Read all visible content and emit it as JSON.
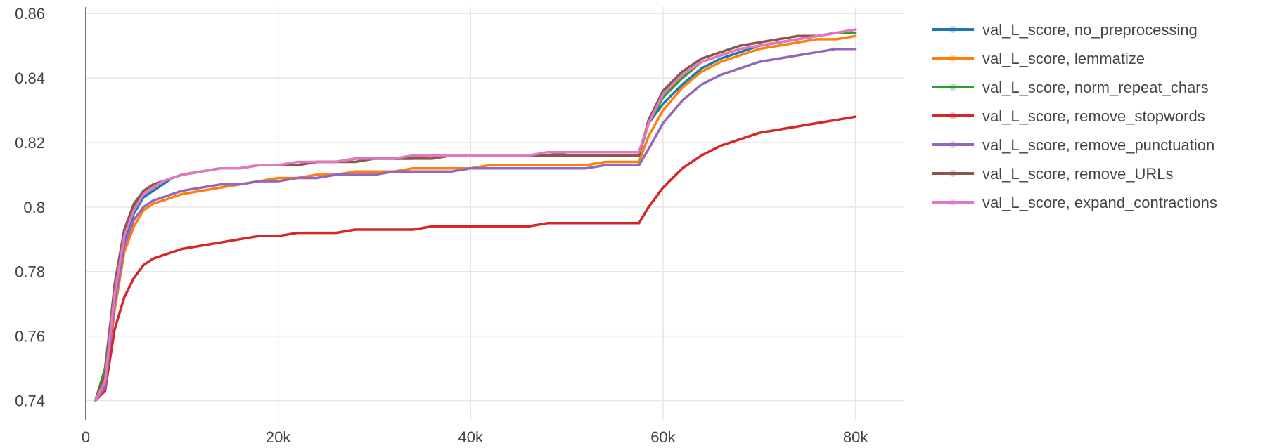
{
  "chart_data": {
    "type": "line",
    "title": "",
    "xlabel": "",
    "ylabel": "",
    "xlim": [
      0,
      85000
    ],
    "ylim": [
      0.734,
      0.862
    ],
    "x_ticks": [
      0,
      20000,
      40000,
      60000,
      80000
    ],
    "x_tick_labels": [
      "0",
      "20k",
      "40k",
      "60k",
      "80k"
    ],
    "y_ticks": [
      0.74,
      0.76,
      0.78,
      0.8,
      0.82,
      0.84,
      0.86
    ],
    "y_tick_labels": [
      "0.74",
      "0.76",
      "0.78",
      "0.8",
      "0.82",
      "0.84",
      "0.86"
    ],
    "grid": true,
    "legend_position": "right",
    "x": [
      1000,
      2000,
      3000,
      4000,
      5000,
      6000,
      7000,
      8000,
      9000,
      10000,
      12000,
      14000,
      16000,
      18000,
      20000,
      22000,
      24000,
      26000,
      28000,
      30000,
      32000,
      34000,
      36000,
      38000,
      40000,
      42000,
      44000,
      46000,
      48000,
      50000,
      52000,
      54000,
      56000,
      57500,
      58500,
      60000,
      62000,
      64000,
      66000,
      68000,
      70000,
      72000,
      74000,
      76000,
      78000,
      80000
    ],
    "series": [
      {
        "name": "val_L_score, no_preprocessing",
        "color": "#1f77b4",
        "values": [
          0.74,
          0.745,
          0.772,
          0.79,
          0.798,
          0.803,
          0.805,
          0.807,
          0.809,
          0.81,
          0.811,
          0.812,
          0.812,
          0.813,
          0.813,
          0.813,
          0.814,
          0.814,
          0.815,
          0.815,
          0.815,
          0.815,
          0.816,
          0.816,
          0.816,
          0.816,
          0.816,
          0.816,
          0.816,
          0.816,
          0.816,
          0.816,
          0.816,
          0.816,
          0.826,
          0.832,
          0.838,
          0.843,
          0.846,
          0.848,
          0.85,
          0.851,
          0.852,
          0.853,
          0.854,
          0.855
        ]
      },
      {
        "name": "val_L_score, lemmatize",
        "color": "#ff7f0e",
        "values": [
          0.74,
          0.743,
          0.768,
          0.786,
          0.794,
          0.799,
          0.801,
          0.802,
          0.803,
          0.804,
          0.805,
          0.806,
          0.807,
          0.808,
          0.809,
          0.809,
          0.81,
          0.81,
          0.811,
          0.811,
          0.811,
          0.812,
          0.812,
          0.812,
          0.812,
          0.813,
          0.813,
          0.813,
          0.813,
          0.813,
          0.813,
          0.814,
          0.814,
          0.814,
          0.822,
          0.83,
          0.837,
          0.842,
          0.845,
          0.847,
          0.849,
          0.85,
          0.851,
          0.852,
          0.852,
          0.853
        ]
      },
      {
        "name": "val_L_score, norm_repeat_chars",
        "color": "#2ca02c",
        "values": [
          0.74,
          0.75,
          0.775,
          0.792,
          0.8,
          0.804,
          0.806,
          0.808,
          0.809,
          0.81,
          0.811,
          0.812,
          0.812,
          0.813,
          0.813,
          0.813,
          0.814,
          0.814,
          0.815,
          0.815,
          0.815,
          0.815,
          0.816,
          0.816,
          0.816,
          0.816,
          0.816,
          0.816,
          0.816,
          0.817,
          0.817,
          0.817,
          0.817,
          0.817,
          0.826,
          0.834,
          0.84,
          0.845,
          0.847,
          0.849,
          0.85,
          0.851,
          0.852,
          0.853,
          0.854,
          0.854
        ]
      },
      {
        "name": "val_L_score, remove_stopwords",
        "color": "#d62728",
        "values": [
          0.74,
          0.743,
          0.762,
          0.772,
          0.778,
          0.782,
          0.784,
          0.785,
          0.786,
          0.787,
          0.788,
          0.789,
          0.79,
          0.791,
          0.791,
          0.792,
          0.792,
          0.792,
          0.793,
          0.793,
          0.793,
          0.793,
          0.794,
          0.794,
          0.794,
          0.794,
          0.794,
          0.794,
          0.795,
          0.795,
          0.795,
          0.795,
          0.795,
          0.795,
          0.8,
          0.806,
          0.812,
          0.816,
          0.819,
          0.821,
          0.823,
          0.824,
          0.825,
          0.826,
          0.827,
          0.828
        ]
      },
      {
        "name": "val_L_score, remove_punctuation",
        "color": "#9467bd",
        "values": [
          0.74,
          0.744,
          0.77,
          0.788,
          0.796,
          0.8,
          0.802,
          0.803,
          0.804,
          0.805,
          0.806,
          0.807,
          0.807,
          0.808,
          0.808,
          0.809,
          0.809,
          0.81,
          0.81,
          0.81,
          0.811,
          0.811,
          0.811,
          0.811,
          0.812,
          0.812,
          0.812,
          0.812,
          0.812,
          0.812,
          0.812,
          0.813,
          0.813,
          0.813,
          0.818,
          0.826,
          0.833,
          0.838,
          0.841,
          0.843,
          0.845,
          0.846,
          0.847,
          0.848,
          0.849,
          0.849
        ]
      },
      {
        "name": "val_L_score, remove_URLs",
        "color": "#8c564b",
        "values": [
          0.74,
          0.748,
          0.776,
          0.793,
          0.801,
          0.805,
          0.807,
          0.808,
          0.809,
          0.81,
          0.811,
          0.812,
          0.812,
          0.813,
          0.813,
          0.813,
          0.814,
          0.814,
          0.814,
          0.815,
          0.815,
          0.815,
          0.815,
          0.816,
          0.816,
          0.816,
          0.816,
          0.816,
          0.816,
          0.816,
          0.816,
          0.816,
          0.816,
          0.816,
          0.827,
          0.836,
          0.842,
          0.846,
          0.848,
          0.85,
          0.851,
          0.852,
          0.853,
          0.853,
          0.854,
          0.855
        ]
      },
      {
        "name": "val_L_score, expand_contractions",
        "color": "#e377c2",
        "values": [
          0.74,
          0.746,
          0.773,
          0.791,
          0.799,
          0.804,
          0.806,
          0.808,
          0.809,
          0.81,
          0.811,
          0.812,
          0.812,
          0.813,
          0.813,
          0.814,
          0.814,
          0.814,
          0.815,
          0.815,
          0.815,
          0.816,
          0.816,
          0.816,
          0.816,
          0.816,
          0.816,
          0.816,
          0.817,
          0.817,
          0.817,
          0.817,
          0.817,
          0.817,
          0.826,
          0.835,
          0.841,
          0.845,
          0.847,
          0.849,
          0.85,
          0.851,
          0.852,
          0.853,
          0.854,
          0.855
        ]
      }
    ]
  }
}
